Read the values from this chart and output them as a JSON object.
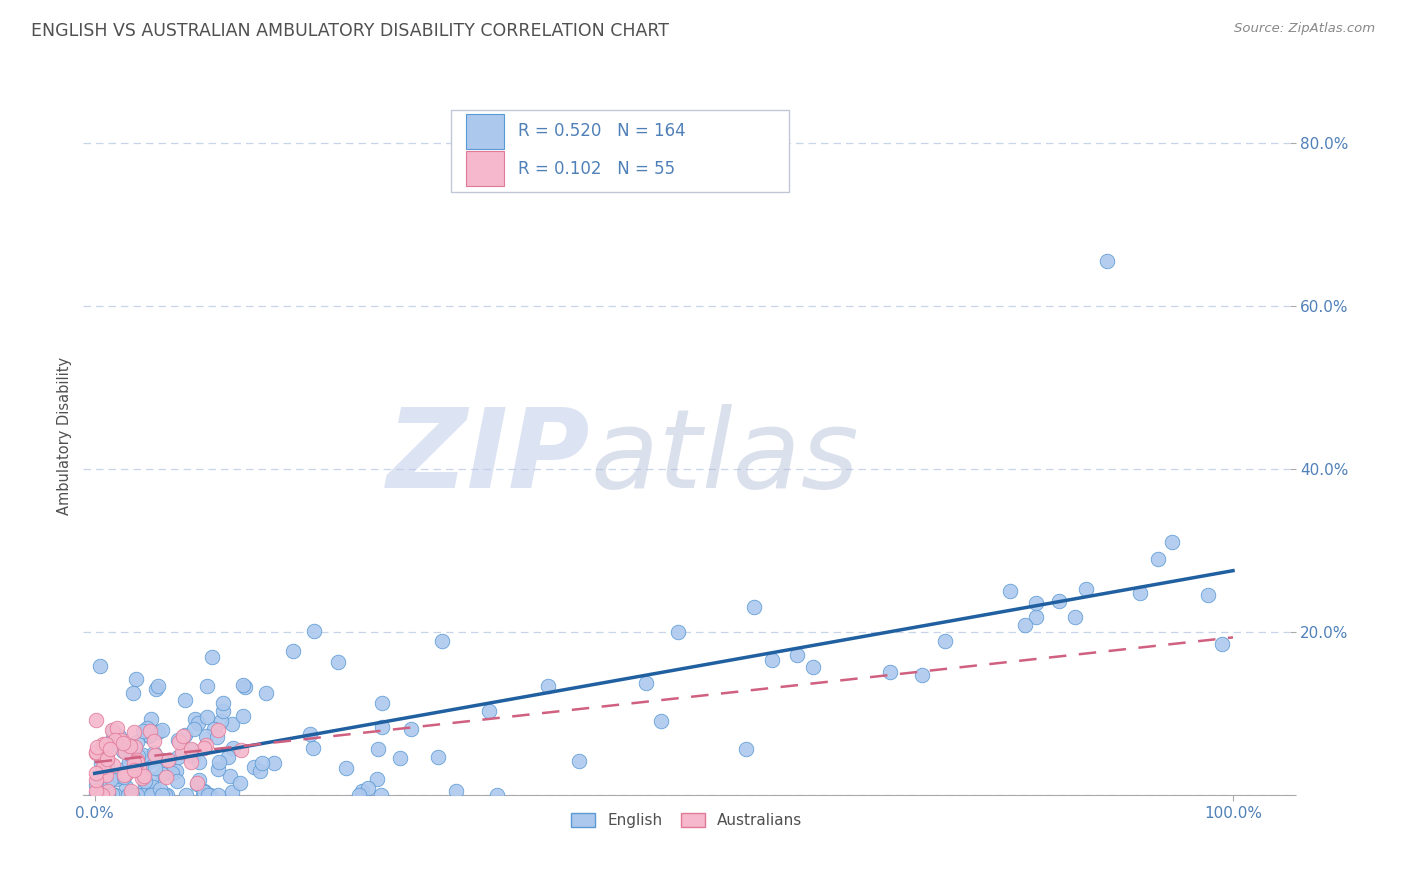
{
  "title": "ENGLISH VS AUSTRALIAN AMBULATORY DISABILITY CORRELATION CHART",
  "source": "Source: ZipAtlas.com",
  "ylabel": "Ambulatory Disability",
  "legend_english": "English",
  "legend_australians": "Australians",
  "english_R": 0.52,
  "english_N": 164,
  "australian_R": 0.102,
  "australian_N": 55,
  "english_color": "#adc8ed",
  "english_edge_color": "#5a9ad4",
  "english_line_color": "#2060a0",
  "australian_color": "#f5b8cc",
  "australian_edge_color": "#e07898",
  "australian_line_color": "#d06080",
  "background_color": "#ffffff",
  "grid_color": "#c8d4e8",
  "watermark": "ZIPatlas",
  "watermark_color_zip": "#c0cce8",
  "watermark_color_atlas": "#b0bcd8",
  "title_color": "#505050",
  "source_color": "#888888",
  "tick_color": "#5080b8",
  "ylabel_color": "#505050",
  "ylim": [
    0.0,
    0.88
  ],
  "xlim": [
    -0.01,
    1.05
  ],
  "yticks": [
    0.0,
    0.2,
    0.4,
    0.6,
    0.8
  ],
  "ytick_labels": [
    "",
    "20.0%",
    "40.0%",
    "60.0%",
    "80.0%"
  ]
}
